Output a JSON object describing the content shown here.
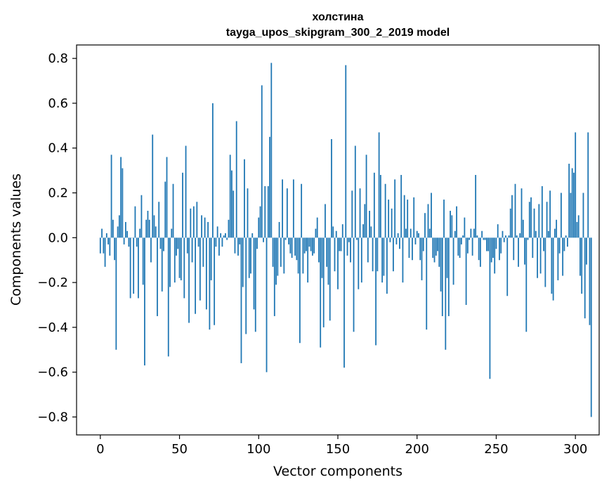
{
  "chart_data": {
    "type": "bar",
    "title": "холстина",
    "subtitle": "tayga_upos_skipgram_300_2_2019 model",
    "xlabel": "Vector components",
    "ylabel": "Components values",
    "xlim": [
      -15,
      315
    ],
    "ylim": [
      -0.88,
      0.86
    ],
    "xticks": [
      0,
      50,
      100,
      150,
      200,
      250,
      300
    ],
    "xtick_labels": [
      "0",
      "50",
      "100",
      "150",
      "200",
      "250",
      "300"
    ],
    "yticks": [
      -0.8,
      -0.6,
      -0.4,
      -0.2,
      0.0,
      0.2,
      0.4,
      0.6,
      0.8
    ],
    "ytick_labels": [
      "−0.8",
      "−0.6",
      "−0.4",
      "−0.2",
      "0.0",
      "0.2",
      "0.4",
      "0.6",
      "0.8"
    ],
    "grid": false,
    "bar_color": "#1f77b4",
    "x_start": 0,
    "values": [
      -0.07,
      0.04,
      -0.07,
      -0.13,
      0.02,
      -0.03,
      -0.08,
      0.37,
      0.08,
      -0.1,
      -0.5,
      0.05,
      0.1,
      0.36,
      0.31,
      -0.03,
      0.07,
      0.03,
      -0.04,
      -0.27,
      0.0,
      -0.25,
      0.14,
      -0.04,
      -0.27,
      0.04,
      0.19,
      -0.21,
      -0.57,
      0.08,
      0.12,
      0.08,
      -0.11,
      0.46,
      0.1,
      0.05,
      -0.35,
      0.16,
      -0.05,
      -0.24,
      -0.06,
      0.25,
      0.36,
      -0.53,
      -0.22,
      0.04,
      0.24,
      -0.2,
      -0.08,
      -0.05,
      -0.18,
      -0.19,
      0.29,
      -0.27,
      0.41,
      -0.07,
      -0.38,
      0.13,
      -0.11,
      0.14,
      -0.34,
      0.16,
      -0.04,
      -0.28,
      0.1,
      -0.13,
      0.09,
      -0.32,
      0.07,
      -0.41,
      -0.19,
      0.6,
      -0.39,
      -0.04,
      0.05,
      -0.08,
      0.02,
      -0.04,
      0.01,
      0.02,
      -0.01,
      0.08,
      0.37,
      0.3,
      0.21,
      -0.07,
      0.52,
      -0.08,
      -0.03,
      -0.56,
      -0.22,
      0.35,
      -0.43,
      0.22,
      -0.18,
      -0.16,
      0.02,
      -0.32,
      -0.42,
      -0.05,
      0.09,
      0.14,
      0.68,
      -0.02,
      0.23,
      -0.6,
      0.23,
      0.45,
      0.78,
      -0.13,
      -0.35,
      -0.21,
      -0.17,
      0.07,
      -0.13,
      0.26,
      -0.16,
      -0.01,
      0.22,
      -0.03,
      -0.07,
      -0.09,
      0.26,
      -0.08,
      -0.1,
      -0.16,
      -0.47,
      0.24,
      -0.16,
      -0.07,
      -0.06,
      -0.2,
      -0.04,
      -0.06,
      -0.08,
      -0.07,
      0.04,
      0.09,
      -0.11,
      -0.49,
      -0.18,
      -0.4,
      0.15,
      -0.13,
      -0.21,
      -0.37,
      0.44,
      0.05,
      -0.15,
      0.03,
      -0.23,
      -0.06,
      -0.06,
      0.06,
      -0.58,
      0.77,
      -0.08,
      -0.02,
      -0.11,
      0.21,
      -0.42,
      0.41,
      -0.01,
      -0.23,
      0.22,
      -0.2,
      0.06,
      0.15,
      0.37,
      -0.11,
      0.12,
      0.05,
      -0.15,
      0.29,
      -0.48,
      -0.15,
      0.47,
      0.28,
      -0.2,
      -0.17,
      0.24,
      -0.25,
      0.17,
      -0.02,
      0.13,
      -0.15,
      0.26,
      -0.03,
      0.02,
      -0.05,
      0.28,
      -0.2,
      0.19,
      0.04,
      0.17,
      -0.09,
      0.04,
      -0.1,
      0.18,
      -0.03,
      0.03,
      0.02,
      -0.1,
      -0.19,
      -0.06,
      0.11,
      -0.41,
      0.15,
      0.04,
      0.2,
      -0.09,
      -0.11,
      -0.08,
      -0.06,
      -0.13,
      -0.24,
      -0.35,
      0.17,
      -0.5,
      -0.18,
      -0.35,
      0.12,
      0.1,
      -0.21,
      0.03,
      0.14,
      -0.08,
      -0.09,
      -0.03,
      0.01,
      0.09,
      -0.3,
      -0.07,
      -0.01,
      0.04,
      -0.08,
      0.04,
      0.28,
      0.01,
      -0.1,
      -0.13,
      0.03,
      -0.01,
      -0.01,
      -0.06,
      -0.06,
      -0.63,
      -0.11,
      -0.09,
      -0.16,
      -0.05,
      0.06,
      -0.1,
      -0.07,
      0.03,
      -0.02,
      0.01,
      -0.26,
      0.01,
      0.13,
      0.19,
      -0.1,
      0.24,
      0.01,
      -0.13,
      0.02,
      0.22,
      0.08,
      -0.12,
      -0.42,
      -0.01,
      0.16,
      0.18,
      -0.09,
      0.13,
      0.03,
      -0.18,
      0.15,
      -0.16,
      0.23,
      -0.06,
      -0.22,
      0.16,
      0.03,
      0.21,
      -0.25,
      -0.28,
      0.04,
      0.08,
      -0.19,
      -0.07,
      0.2,
      -0.17,
      -0.06,
      0.01,
      -0.04,
      0.33,
      0.2,
      0.31,
      0.29,
      0.47,
      0.07,
      0.1,
      -0.17,
      -0.25,
      0.2,
      -0.36,
      -0.12,
      0.47,
      -0.39,
      -0.8
    ]
  }
}
